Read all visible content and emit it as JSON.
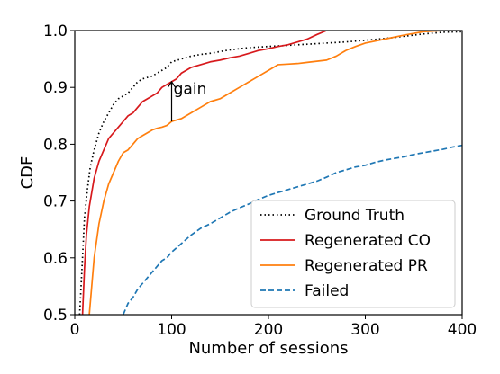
{
  "chart_data": {
    "type": "line",
    "title": "",
    "xlabel": "Number of sessions",
    "ylabel": "CDF",
    "xlim": [
      0,
      400
    ],
    "ylim": [
      0.5,
      1.0
    ],
    "xticks": [
      0,
      100,
      200,
      300,
      400
    ],
    "xtick_labels": [
      "0",
      "100",
      "200",
      "300",
      "400"
    ],
    "yticks": [
      0.5,
      0.6,
      0.7,
      0.8,
      0.9,
      1.0
    ],
    "ytick_labels": [
      "0.5",
      "0.6",
      "0.7",
      "0.8",
      "0.9",
      "1.0"
    ],
    "grid": false,
    "legend_position": "bottom-right",
    "annotation": {
      "text": "gain",
      "arrow_x": 100,
      "arrow_y_from": 0.84,
      "arrow_y_to": 0.91,
      "text_x": 102,
      "text_y": 0.898
    },
    "series": [
      {
        "name": "Ground Truth",
        "color": "#000000",
        "style": "dotted",
        "x": [
          5,
          8,
          10,
          13,
          16,
          20,
          25,
          30,
          35,
          40,
          45,
          50,
          55,
          60,
          65,
          70,
          80,
          90,
          95,
          100,
          110,
          120,
          130,
          140,
          150,
          160,
          170,
          180,
          190,
          200,
          220,
          240,
          260,
          280,
          300,
          320,
          340,
          360,
          380,
          400
        ],
        "y": [
          0.5,
          0.6,
          0.67,
          0.72,
          0.76,
          0.79,
          0.82,
          0.84,
          0.855,
          0.87,
          0.88,
          0.885,
          0.89,
          0.9,
          0.91,
          0.915,
          0.92,
          0.93,
          0.935,
          0.945,
          0.95,
          0.955,
          0.958,
          0.96,
          0.963,
          0.966,
          0.968,
          0.97,
          0.971,
          0.972,
          0.974,
          0.976,
          0.978,
          0.98,
          0.983,
          0.986,
          0.99,
          0.994,
          0.997,
          0.998
        ]
      },
      {
        "name": "Regenerated CO",
        "color": "#d7191c",
        "style": "solid",
        "x": [
          8,
          10,
          12,
          15,
          18,
          20,
          25,
          30,
          35,
          40,
          45,
          50,
          55,
          60,
          65,
          70,
          75,
          80,
          85,
          90,
          95,
          100,
          105,
          110,
          115,
          120,
          130,
          140,
          150,
          160,
          170,
          180,
          190,
          200,
          210,
          220,
          230,
          240,
          250,
          260
        ],
        "y": [
          0.5,
          0.58,
          0.64,
          0.69,
          0.72,
          0.74,
          0.77,
          0.79,
          0.81,
          0.82,
          0.83,
          0.84,
          0.85,
          0.855,
          0.865,
          0.875,
          0.88,
          0.885,
          0.89,
          0.9,
          0.905,
          0.91,
          0.915,
          0.925,
          0.93,
          0.935,
          0.94,
          0.945,
          0.948,
          0.952,
          0.955,
          0.96,
          0.965,
          0.968,
          0.972,
          0.975,
          0.98,
          0.985,
          0.993,
          1.0
        ]
      },
      {
        "name": "Regenerated PR",
        "color": "#ff7f0e",
        "style": "solid",
        "x": [
          15,
          18,
          20,
          25,
          30,
          35,
          40,
          45,
          50,
          55,
          60,
          65,
          70,
          75,
          80,
          85,
          90,
          95,
          100,
          110,
          120,
          130,
          140,
          150,
          160,
          170,
          180,
          190,
          200,
          210,
          220,
          230,
          240,
          250,
          260,
          270,
          280,
          290,
          300,
          320,
          340,
          360,
          380
        ],
        "y": [
          0.5,
          0.56,
          0.6,
          0.66,
          0.7,
          0.73,
          0.75,
          0.77,
          0.785,
          0.79,
          0.8,
          0.81,
          0.815,
          0.82,
          0.825,
          0.828,
          0.83,
          0.833,
          0.84,
          0.845,
          0.855,
          0.865,
          0.875,
          0.88,
          0.89,
          0.9,
          0.91,
          0.92,
          0.93,
          0.94,
          0.941,
          0.942,
          0.944,
          0.946,
          0.948,
          0.955,
          0.965,
          0.972,
          0.978,
          0.985,
          0.992,
          0.998,
          1.0
        ]
      },
      {
        "name": "Failed",
        "color": "#1f77b4",
        "style": "dashed",
        "x": [
          50,
          55,
          60,
          65,
          70,
          75,
          80,
          85,
          90,
          95,
          100,
          110,
          120,
          130,
          140,
          150,
          160,
          170,
          180,
          190,
          200,
          210,
          220,
          230,
          240,
          250,
          260,
          270,
          280,
          290,
          300,
          310,
          320,
          330,
          340,
          350,
          360,
          370,
          380,
          390,
          400
        ],
        "y": [
          0.5,
          0.52,
          0.53,
          0.545,
          0.555,
          0.565,
          0.575,
          0.585,
          0.595,
          0.6,
          0.61,
          0.625,
          0.64,
          0.652,
          0.66,
          0.67,
          0.68,
          0.688,
          0.695,
          0.703,
          0.71,
          0.715,
          0.72,
          0.725,
          0.73,
          0.735,
          0.742,
          0.75,
          0.755,
          0.76,
          0.763,
          0.768,
          0.772,
          0.775,
          0.778,
          0.782,
          0.785,
          0.788,
          0.791,
          0.795,
          0.798
        ]
      }
    ]
  }
}
